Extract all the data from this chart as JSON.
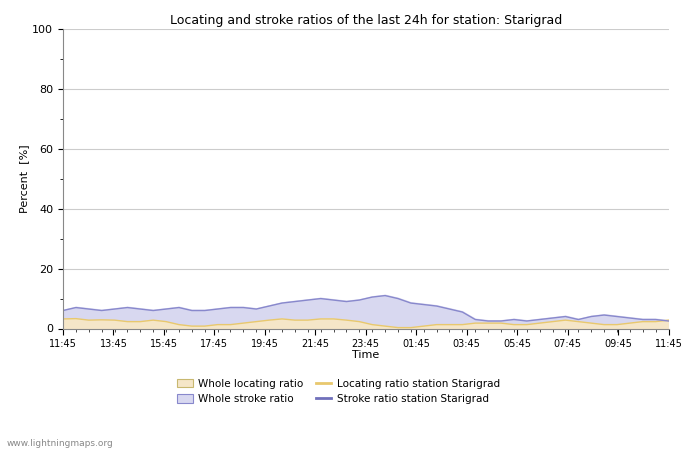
{
  "title": "Locating and stroke ratios of the last 24h for station: Starigrad",
  "ylabel": "Percent  [%]",
  "xlabel": "Time",
  "watermark": "www.lightningmaps.org",
  "x_labels": [
    "11:45",
    "13:45",
    "15:45",
    "17:45",
    "19:45",
    "21:45",
    "23:45",
    "01:45",
    "03:45",
    "05:45",
    "07:45",
    "09:45",
    "11:45"
  ],
  "ylim": [
    0,
    100
  ],
  "yticks": [
    0,
    20,
    40,
    60,
    80,
    100
  ],
  "background_color": "#ffffff",
  "plot_background": "#ffffff",
  "grid_color": "#cccccc",
  "whole_locating_fill_color": "#f5e6c8",
  "whole_stroke_fill_color": "#d8d8f0",
  "locating_line_color": "#e8c86e",
  "stroke_line_color": "#8888cc",
  "whole_locating_values": [
    3.5,
    3.5,
    3.0,
    3.0,
    3.0,
    2.5,
    2.5,
    3.0,
    2.5,
    1.5,
    1.0,
    1.0,
    1.5,
    1.5,
    2.0,
    2.5,
    3.0,
    3.5,
    3.0,
    3.0,
    3.5,
    3.5,
    3.0,
    2.5,
    1.5,
    1.0,
    0.5,
    0.5,
    1.0,
    1.5,
    1.5,
    1.5,
    2.0,
    2.0,
    2.0,
    1.5,
    1.5,
    2.0,
    2.5,
    3.0,
    2.5,
    2.0,
    1.5,
    1.5,
    2.0,
    2.5,
    2.5,
    3.0
  ],
  "whole_stroke_values": [
    6.5,
    7.5,
    7.0,
    6.5,
    7.0,
    7.5,
    7.0,
    6.5,
    7.0,
    7.5,
    6.5,
    6.5,
    7.0,
    7.5,
    7.5,
    7.0,
    8.0,
    9.0,
    9.5,
    10.0,
    10.5,
    10.0,
    9.5,
    10.0,
    11.0,
    11.5,
    10.5,
    9.0,
    8.5,
    8.0,
    7.0,
    6.0,
    3.5,
    3.0,
    3.0,
    3.5,
    3.0,
    3.5,
    4.0,
    4.5,
    3.5,
    4.5,
    5.0,
    4.5,
    4.0,
    3.5,
    3.5,
    3.0
  ],
  "locating_station_values": [
    3.2,
    3.3,
    2.8,
    2.9,
    2.8,
    2.3,
    2.3,
    2.8,
    2.3,
    1.3,
    0.8,
    0.8,
    1.3,
    1.3,
    1.8,
    2.3,
    2.8,
    3.2,
    2.8,
    2.8,
    3.2,
    3.2,
    2.8,
    2.3,
    1.3,
    0.8,
    0.3,
    0.3,
    0.8,
    1.3,
    1.3,
    1.3,
    1.8,
    1.8,
    1.8,
    1.3,
    1.3,
    1.8,
    2.3,
    2.8,
    2.3,
    1.8,
    1.3,
    1.3,
    1.8,
    2.3,
    2.3,
    2.8
  ],
  "stroke_station_values": [
    6.0,
    7.0,
    6.5,
    6.0,
    6.5,
    7.0,
    6.5,
    6.0,
    6.5,
    7.0,
    6.0,
    6.0,
    6.5,
    7.0,
    7.0,
    6.5,
    7.5,
    8.5,
    9.0,
    9.5,
    10.0,
    9.5,
    9.0,
    9.5,
    10.5,
    11.0,
    10.0,
    8.5,
    8.0,
    7.5,
    6.5,
    5.5,
    3.0,
    2.5,
    2.5,
    3.0,
    2.5,
    3.0,
    3.5,
    4.0,
    3.0,
    4.0,
    4.5,
    4.0,
    3.5,
    3.0,
    3.0,
    2.5
  ],
  "n_points": 48,
  "legend_items": [
    {
      "label": "Whole locating ratio",
      "type": "patch",
      "color": "#f5e6c8",
      "edgecolor": "#c8b870"
    },
    {
      "label": "Locating ratio station Starigrad",
      "type": "line",
      "color": "#e8c86e"
    },
    {
      "label": "Whole stroke ratio",
      "type": "patch",
      "color": "#d8d8f0",
      "edgecolor": "#8888cc"
    },
    {
      "label": "Stroke ratio station Starigrad",
      "type": "line",
      "color": "#7070bb"
    }
  ]
}
